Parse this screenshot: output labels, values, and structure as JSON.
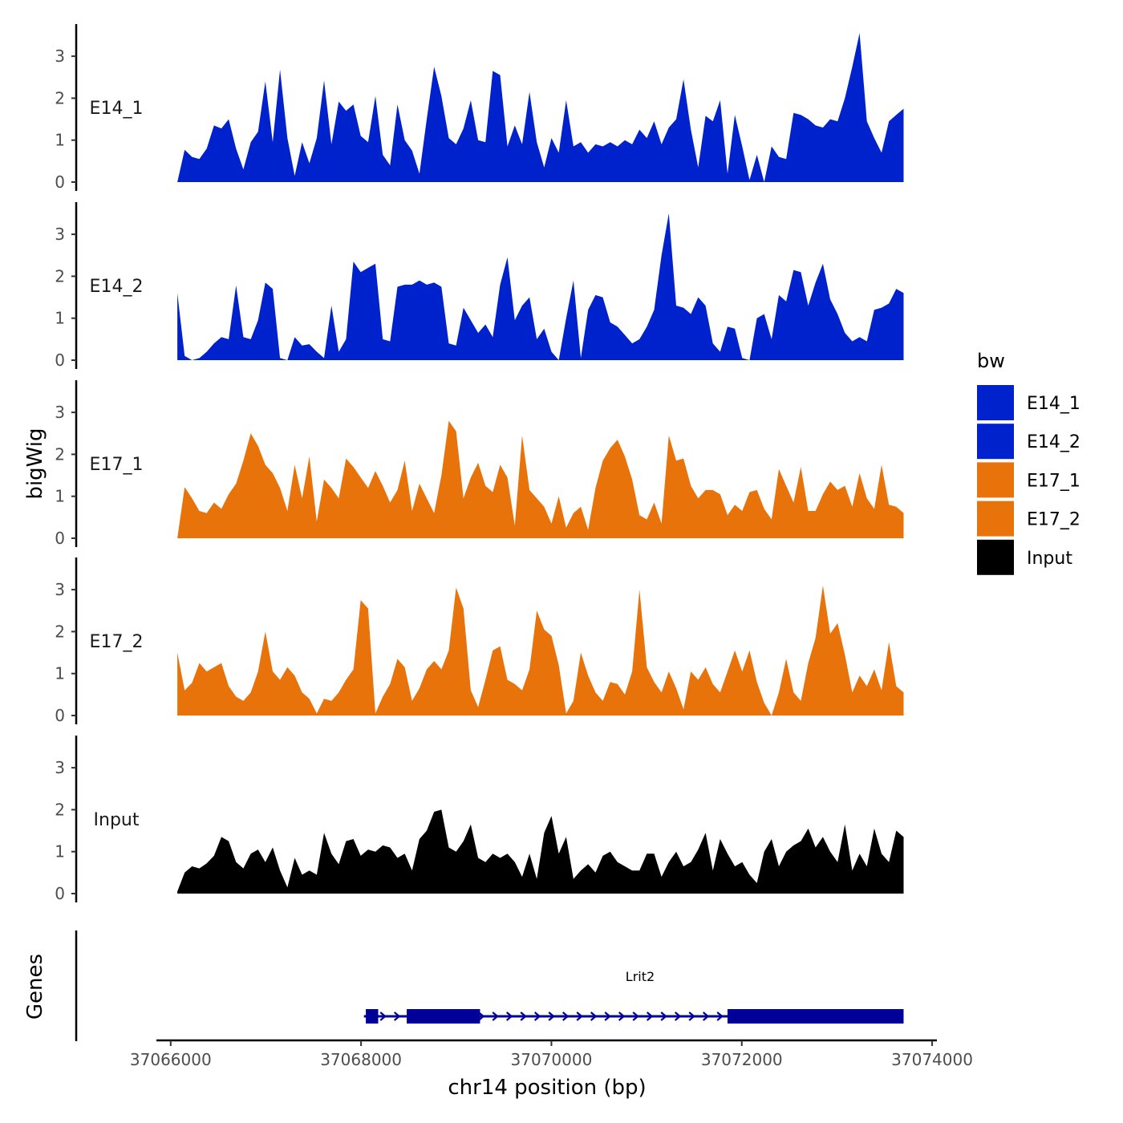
{
  "chart_data": {
    "type": "area",
    "title": "",
    "ylabel": "bigWig",
    "genes_label": "Genes",
    "xlabel": "chr14 position (bp)",
    "xlim": [
      37065850,
      37074050
    ],
    "data_range": [
      37066070,
      37073700
    ],
    "ylim": [
      0,
      3.8
    ],
    "yticks": [
      0,
      1,
      2,
      3
    ],
    "xticks": [
      37066000,
      37068000,
      37070000,
      37072000,
      37074000
    ],
    "xtick_labels": [
      "37066000",
      "37068000",
      "37070000",
      "37072000",
      "37074000"
    ],
    "legend": {
      "title": "bw",
      "position": "right",
      "entries": [
        {
          "label": "E14_1",
          "color": "#0022CC"
        },
        {
          "label": "E14_2",
          "color": "#0022CC"
        },
        {
          "label": "E17_1",
          "color": "#E8730A"
        },
        {
          "label": "E17_2",
          "color": "#E8730A"
        },
        {
          "label": "Input",
          "color": "#000000"
        }
      ]
    },
    "series": [
      {
        "name": "E14_1",
        "color": "#0022CC",
        "values": [
          0.0,
          0.77,
          0.6,
          0.55,
          0.8,
          1.35,
          1.28,
          1.5,
          0.8,
          0.3,
          0.95,
          1.2,
          2.4,
          0.95,
          2.68,
          1.05,
          0.15,
          0.95,
          0.45,
          1.05,
          2.42,
          0.9,
          1.92,
          1.7,
          1.85,
          1.1,
          0.95,
          2.05,
          0.65,
          0.4,
          1.85,
          1.0,
          0.75,
          0.2,
          1.5,
          2.75,
          2.05,
          1.05,
          0.9,
          1.28,
          1.95,
          1.0,
          0.95,
          2.65,
          2.55,
          0.85,
          1.35,
          0.9,
          2.15,
          0.95,
          0.35,
          1.05,
          0.7,
          1.95,
          0.85,
          0.95,
          0.7,
          0.9,
          0.85,
          0.95,
          0.85,
          1.0,
          0.9,
          1.25,
          1.05,
          1.45,
          0.9,
          1.3,
          1.5,
          2.45,
          1.25,
          0.35,
          1.58,
          1.45,
          1.95,
          0.2,
          1.6,
          0.85,
          0.05,
          0.65,
          0.0,
          0.85,
          0.6,
          0.55,
          1.65,
          1.6,
          1.5,
          1.35,
          1.3,
          1.5,
          1.45,
          2.0,
          2.75,
          3.55,
          1.45,
          1.05,
          0.7,
          1.45,
          1.6,
          1.75
        ]
      },
      {
        "name": "E14_2",
        "color": "#0022CC",
        "values": [
          1.6,
          0.1,
          0.0,
          0.05,
          0.2,
          0.4,
          0.55,
          0.5,
          1.78,
          0.55,
          0.5,
          0.95,
          1.85,
          1.7,
          0.05,
          0.0,
          0.55,
          0.35,
          0.38,
          0.2,
          0.05,
          1.3,
          0.2,
          0.5,
          2.35,
          2.1,
          2.2,
          2.3,
          0.5,
          0.45,
          1.75,
          1.8,
          1.8,
          1.9,
          1.8,
          1.85,
          1.75,
          0.4,
          0.35,
          1.25,
          0.95,
          0.65,
          0.85,
          0.55,
          1.8,
          2.45,
          0.95,
          1.3,
          1.5,
          0.5,
          0.75,
          0.2,
          0.0,
          1.0,
          1.9,
          0.05,
          1.2,
          1.55,
          1.5,
          0.9,
          0.8,
          0.6,
          0.4,
          0.5,
          0.8,
          1.2,
          2.5,
          3.5,
          1.3,
          1.25,
          1.1,
          1.5,
          1.3,
          0.4,
          0.2,
          0.8,
          0.75,
          0.05,
          0.0,
          1.0,
          1.1,
          0.5,
          1.55,
          1.4,
          2.15,
          2.1,
          1.3,
          1.85,
          2.3,
          1.45,
          1.1,
          0.65,
          0.45,
          0.55,
          0.45,
          1.2,
          1.25,
          1.35,
          1.7,
          1.6
        ]
      },
      {
        "name": "E17_1",
        "color": "#E8730A",
        "values": [
          0.0,
          1.22,
          0.95,
          0.65,
          0.6,
          0.85,
          0.7,
          1.05,
          1.3,
          1.85,
          2.5,
          2.2,
          1.75,
          1.55,
          1.2,
          0.65,
          1.75,
          0.95,
          1.95,
          0.4,
          1.4,
          1.2,
          0.95,
          1.9,
          1.7,
          1.45,
          1.2,
          1.6,
          1.25,
          0.85,
          1.15,
          1.85,
          0.65,
          1.3,
          0.95,
          0.6,
          1.5,
          2.8,
          2.55,
          0.95,
          1.45,
          1.8,
          1.25,
          1.1,
          1.75,
          1.45,
          0.3,
          2.45,
          1.15,
          0.95,
          0.75,
          0.35,
          1.0,
          0.25,
          0.6,
          0.75,
          0.2,
          1.2,
          1.85,
          2.15,
          2.35,
          1.95,
          1.4,
          0.55,
          0.45,
          0.85,
          0.35,
          2.45,
          1.85,
          1.9,
          1.25,
          0.95,
          1.15,
          1.15,
          1.05,
          0.55,
          0.8,
          0.65,
          1.1,
          1.15,
          0.7,
          0.45,
          1.65,
          1.25,
          0.85,
          1.7,
          0.65,
          0.65,
          1.05,
          1.35,
          1.15,
          1.25,
          0.75,
          1.55,
          0.95,
          0.7,
          1.75,
          0.8,
          0.75,
          0.6
        ]
      },
      {
        "name": "E17_2",
        "color": "#E8730A",
        "values": [
          1.5,
          0.6,
          0.78,
          1.25,
          1.05,
          1.15,
          1.25,
          0.7,
          0.45,
          0.35,
          0.55,
          1.05,
          2.0,
          1.05,
          0.85,
          1.15,
          0.95,
          0.55,
          0.4,
          0.05,
          0.4,
          0.35,
          0.55,
          0.85,
          1.1,
          2.75,
          2.55,
          0.05,
          0.45,
          0.75,
          1.35,
          1.15,
          0.35,
          0.65,
          1.1,
          1.3,
          1.1,
          1.55,
          3.05,
          2.55,
          0.6,
          0.2,
          0.85,
          1.55,
          1.65,
          0.85,
          0.75,
          0.6,
          1.1,
          2.5,
          2.05,
          1.9,
          1.2,
          0.05,
          0.35,
          1.5,
          0.95,
          0.55,
          0.35,
          0.8,
          0.75,
          0.5,
          1.05,
          3.0,
          1.15,
          0.8,
          0.55,
          1.05,
          0.65,
          0.15,
          1.05,
          0.85,
          1.15,
          0.75,
          0.55,
          1.05,
          1.55,
          1.05,
          1.55,
          0.8,
          0.3,
          0.0,
          0.55,
          1.35,
          0.55,
          0.35,
          1.25,
          1.85,
          3.1,
          1.95,
          2.2,
          1.45,
          0.55,
          0.95,
          0.7,
          1.1,
          0.6,
          1.75,
          0.7,
          0.55
        ]
      },
      {
        "name": "Input",
        "color": "#000000",
        "values": [
          0.05,
          0.5,
          0.65,
          0.6,
          0.72,
          0.9,
          1.35,
          1.25,
          0.75,
          0.6,
          0.95,
          1.05,
          0.75,
          1.1,
          0.55,
          0.15,
          0.85,
          0.45,
          0.55,
          0.45,
          1.45,
          0.95,
          0.7,
          1.25,
          1.3,
          0.9,
          1.05,
          1.0,
          1.15,
          1.1,
          0.85,
          0.95,
          0.55,
          1.3,
          1.5,
          1.95,
          2.0,
          1.1,
          1.0,
          1.25,
          1.65,
          0.85,
          0.75,
          0.95,
          0.85,
          0.95,
          0.75,
          0.4,
          0.95,
          0.35,
          1.45,
          1.85,
          0.95,
          1.35,
          0.35,
          0.55,
          0.7,
          0.5,
          0.9,
          1.0,
          0.75,
          0.65,
          0.55,
          0.55,
          0.95,
          0.95,
          0.4,
          0.75,
          1.0,
          0.65,
          0.75,
          1.05,
          1.45,
          0.55,
          1.3,
          0.95,
          0.65,
          0.75,
          0.45,
          0.25,
          1.0,
          1.3,
          0.65,
          1.0,
          1.15,
          1.25,
          1.55,
          1.1,
          1.35,
          1.0,
          0.75,
          1.65,
          0.55,
          0.95,
          0.65,
          1.55,
          0.95,
          0.75,
          1.5,
          1.35
        ]
      }
    ],
    "genes": [
      {
        "name": "Lrit2",
        "color": "#000099",
        "start": 37068030,
        "end": 37073700,
        "strand": "+",
        "exons": [
          [
            37068050,
            37068180
          ],
          [
            37068480,
            37069250
          ],
          [
            37071850,
            37073700
          ]
        ]
      }
    ]
  }
}
